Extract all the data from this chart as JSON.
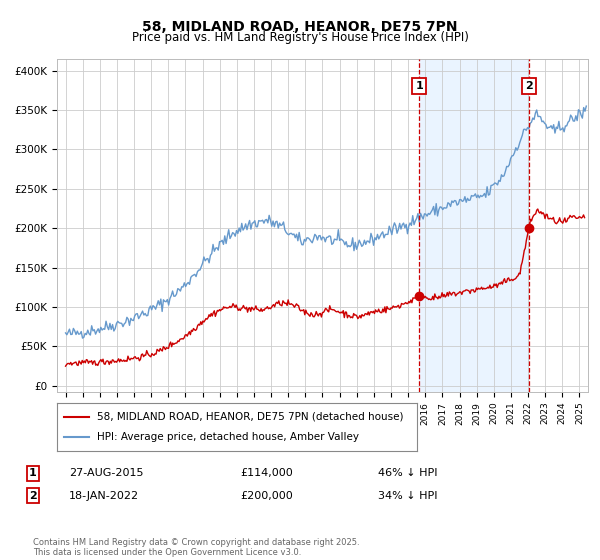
{
  "title": "58, MIDLAND ROAD, HEANOR, DE75 7PN",
  "subtitle": "Price paid vs. HM Land Registry's House Price Index (HPI)",
  "red_label": "58, MIDLAND ROAD, HEANOR, DE75 7PN (detached house)",
  "blue_label": "HPI: Average price, detached house, Amber Valley",
  "marker1_date": 2015.65,
  "marker1_label": "1",
  "marker1_price": 114000,
  "marker1_text": "27-AUG-2015",
  "marker1_pct": "46% ↓ HPI",
  "marker2_date": 2022.05,
  "marker2_label": "2",
  "marker2_price": 200000,
  "marker2_text": "18-JAN-2022",
  "marker2_pct": "34% ↓ HPI",
  "ylabel_ticks": [
    0,
    50000,
    100000,
    150000,
    200000,
    250000,
    300000,
    350000,
    400000
  ],
  "ylabel_labels": [
    "£0",
    "£50K",
    "£100K",
    "£150K",
    "£200K",
    "£250K",
    "£300K",
    "£350K",
    "£400K"
  ],
  "xlim": [
    1994.5,
    2025.5
  ],
  "ylim": [
    -8000,
    415000
  ],
  "footer": "Contains HM Land Registry data © Crown copyright and database right 2025.\nThis data is licensed under the Open Government Licence v3.0.",
  "red_color": "#cc0000",
  "blue_color": "#6699cc",
  "blue_fill_color": "#ddeeff",
  "marker_dot_color": "#cc0000",
  "vline_color": "#cc0000",
  "grid_color": "#cccccc",
  "background_color": "#ffffff"
}
